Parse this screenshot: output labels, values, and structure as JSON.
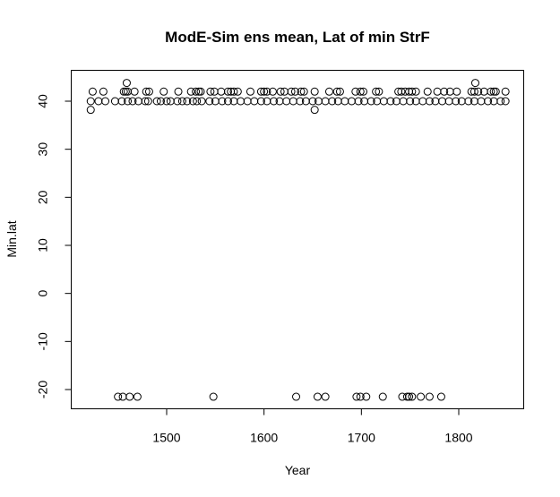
{
  "chart_data": {
    "type": "scatter",
    "title": "ModE-Sim ens mean, Lat of min StrF",
    "xlabel": "Year",
    "ylabel": "Min.lat",
    "xlim": [
      1420,
      1850
    ],
    "ylim": [
      -24,
      46
    ],
    "xticks": [
      1500,
      1600,
      1700,
      1800
    ],
    "yticks": [
      -20,
      -10,
      0,
      10,
      20,
      30,
      40
    ],
    "grid": false,
    "legend": "none",
    "marker": "open-circle",
    "color": "#000000",
    "series": [
      {
        "x": [
          1450,
          1455,
          1462,
          1470,
          1548,
          1633,
          1655,
          1663,
          1695,
          1699,
          1705,
          1722,
          1742,
          1747,
          1749,
          1752,
          1761,
          1770,
          1782
        ],
        "y": [
          -21.5,
          -21.5,
          -21.5,
          -21.5,
          -21.5,
          -21.5,
          -21.5,
          -21.5,
          -21.5,
          -21.5,
          -21.5,
          -21.5,
          -21.5,
          -21.5,
          -21.5,
          -21.5,
          -21.5,
          -21.5,
          -21.5
        ]
      },
      {
        "x": [
          1422,
          1459,
          1652,
          1817
        ],
        "y": [
          38.2,
          43.8,
          38.2,
          43.8
        ]
      },
      {
        "x": [
          1422,
          1430,
          1437,
          1447,
          1454,
          1460,
          1465,
          1471,
          1478,
          1481,
          1490,
          1494,
          1500,
          1504,
          1511,
          1516,
          1521,
          1527,
          1531,
          1536,
          1544,
          1550,
          1557,
          1563,
          1569,
          1576,
          1583,
          1590,
          1597,
          1603,
          1610,
          1616,
          1623,
          1630,
          1637,
          1643,
          1650,
          1656,
          1663,
          1670,
          1676,
          1683,
          1690,
          1697,
          1703,
          1710,
          1716,
          1723,
          1730,
          1736,
          1743,
          1750,
          1756,
          1763,
          1770,
          1776,
          1783,
          1790,
          1797,
          1803,
          1810,
          1816,
          1823,
          1830,
          1836,
          1843,
          1848
        ],
        "y": [
          40,
          40,
          40,
          40,
          40,
          40,
          40,
          40,
          40,
          40,
          40,
          40,
          40,
          40,
          40,
          40,
          40,
          40,
          40,
          40,
          40,
          40,
          40,
          40,
          40,
          40,
          40,
          40,
          40,
          40,
          40,
          40,
          40,
          40,
          40,
          40,
          40,
          40,
          40,
          40,
          40,
          40,
          40,
          40,
          40,
          40,
          40,
          40,
          40,
          40,
          40,
          40,
          40,
          40,
          40,
          40,
          40,
          40,
          40,
          40,
          40,
          40,
          40,
          40,
          40,
          40,
          40
        ]
      },
      {
        "x": [
          1424,
          1435,
          1456,
          1458,
          1460,
          1467,
          1479,
          1482,
          1497,
          1512,
          1525,
          1530,
          1533,
          1535,
          1545,
          1549,
          1556,
          1563,
          1566,
          1569,
          1573,
          1586,
          1597,
          1600,
          1603,
          1609,
          1617,
          1621,
          1628,
          1632,
          1638,
          1641,
          1652,
          1667,
          1675,
          1678,
          1694,
          1699,
          1702,
          1715,
          1718,
          1738,
          1741,
          1745,
          1749,
          1752,
          1756,
          1768,
          1778,
          1785,
          1791,
          1798,
          1813,
          1816,
          1820,
          1826,
          1833,
          1836,
          1838,
          1848
        ],
        "y": [
          42,
          42,
          42,
          42,
          42,
          42,
          42,
          42,
          42,
          42,
          42,
          42,
          42,
          42,
          42,
          42,
          42,
          42,
          42,
          42,
          42,
          42,
          42,
          42,
          42,
          42,
          42,
          42,
          42,
          42,
          42,
          42,
          42,
          42,
          42,
          42,
          42,
          42,
          42,
          42,
          42,
          42,
          42,
          42,
          42,
          42,
          42,
          42,
          42,
          42,
          42,
          42,
          42,
          42,
          42,
          42,
          42,
          42,
          42,
          42
        ]
      }
    ]
  }
}
